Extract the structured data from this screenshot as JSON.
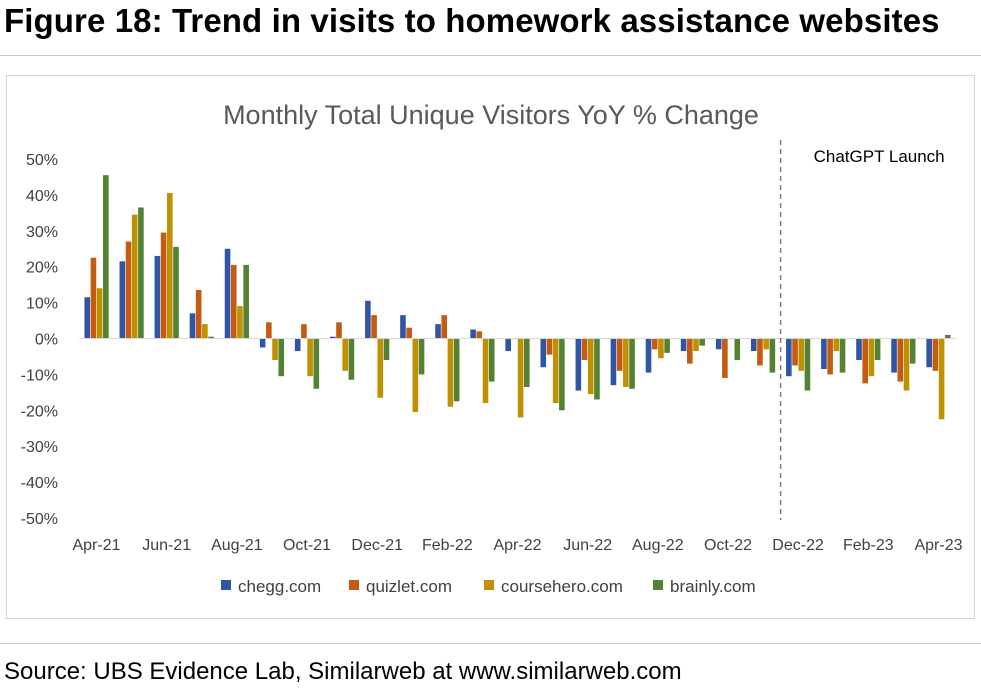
{
  "figure_title": "Figure 18: Trend in visits to homework assistance websites",
  "source": "Source: UBS Evidence Lab, Similarweb at www.similarweb.com",
  "chart_data": {
    "type": "bar",
    "title": "Monthly Total Unique Visitors YoY % Change",
    "xlabel": "",
    "ylabel": "",
    "ylim": [
      -50,
      50
    ],
    "yticks": [
      "50%",
      "40%",
      "30%",
      "20%",
      "10%",
      "0%",
      "-10%",
      "-20%",
      "-30%",
      "-40%",
      "-50%"
    ],
    "grid": false,
    "legend_position": "bottom",
    "categories": [
      "Apr-21",
      "May-21",
      "Jun-21",
      "Jul-21",
      "Aug-21",
      "Sep-21",
      "Oct-21",
      "Nov-21",
      "Dec-21",
      "Jan-22",
      "Feb-22",
      "Mar-22",
      "Apr-22",
      "May-22",
      "Jun-22",
      "Jul-22",
      "Aug-22",
      "Sep-22",
      "Oct-22",
      "Nov-22",
      "Dec-22",
      "Jan-23",
      "Feb-23",
      "Mar-23",
      "Apr-23"
    ],
    "x_tick_labels": [
      "Apr-21",
      "Jun-21",
      "Aug-21",
      "Oct-21",
      "Dec-21",
      "Feb-22",
      "Apr-22",
      "Jun-22",
      "Aug-22",
      "Oct-22",
      "Dec-22",
      "Feb-23",
      "Apr-23"
    ],
    "series": [
      {
        "name": "chegg.com",
        "color": "#2f55a4",
        "values": [
          11.5,
          21.5,
          23,
          7,
          25,
          -2.5,
          -3.5,
          0.5,
          10.5,
          6.5,
          4,
          2.5,
          -3.5,
          -8,
          -14.5,
          -13,
          -9.5,
          -3.5,
          -3,
          -3.5,
          -10.5,
          -8.5,
          -6,
          -9.5,
          -8
        ]
      },
      {
        "name": "quizlet.com",
        "color": "#c55a11",
        "values": [
          22.5,
          27,
          29.5,
          13.5,
          20.5,
          4.5,
          4,
          4.5,
          6.5,
          3,
          6.5,
          2,
          0,
          -4.5,
          -6,
          -9,
          -3,
          -7,
          -11,
          -7.5,
          -7.5,
          -10,
          -12.5,
          -12,
          -9
        ]
      },
      {
        "name": "coursehero.com",
        "color": "#bf9000",
        "values": [
          14,
          34.5,
          40.5,
          4,
          9,
          -6,
          -10.5,
          -9,
          -16.5,
          -20.5,
          -19,
          -18,
          -22,
          -18,
          -15.5,
          -13.5,
          -5.5,
          -3.5,
          0,
          -3,
          -9,
          -3.5,
          -10.5,
          -14.5,
          -22.5
        ]
      },
      {
        "name": "brainly.com",
        "color": "#548235",
        "values": [
          45.5,
          36.5,
          25.5,
          0.5,
          20.5,
          -10.5,
          -14,
          -11.5,
          -6,
          -10,
          -17.5,
          -12,
          -13.5,
          -20,
          -17,
          -14,
          -4,
          -2,
          -6,
          -9.5,
          -14.5,
          -9.5,
          -6,
          -7,
          1
        ]
      }
    ],
    "annotation": {
      "label": "ChatGPT Launch",
      "between": [
        "Nov-22",
        "Dec-22"
      ]
    }
  }
}
